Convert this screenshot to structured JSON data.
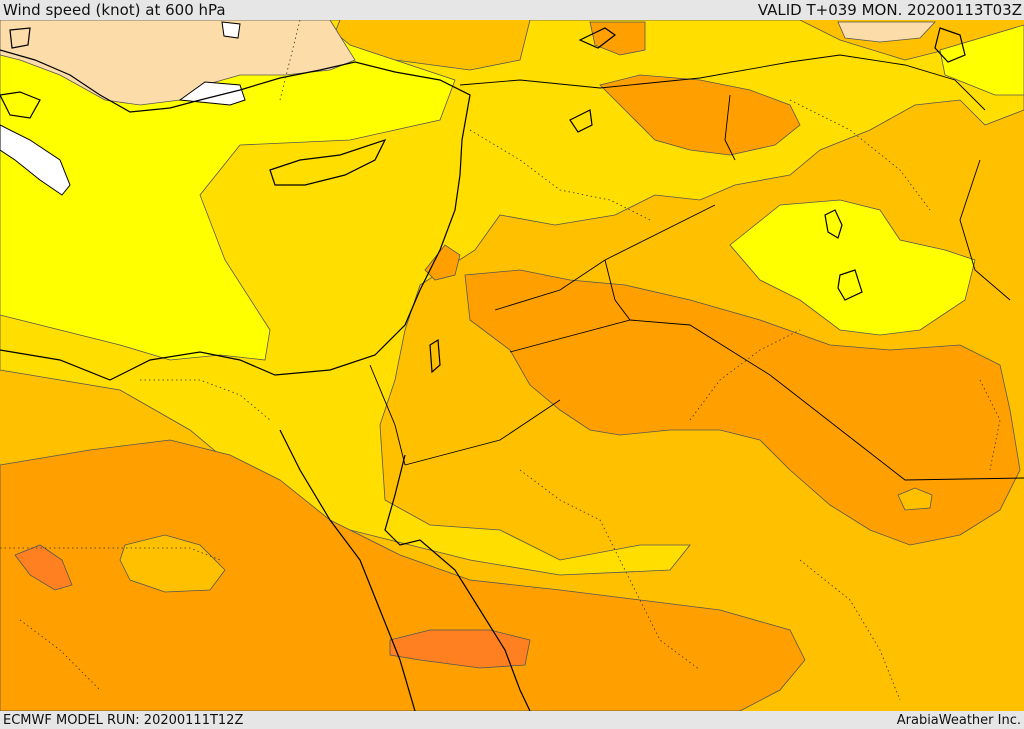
{
  "header": {
    "title": "Wind speed (knot) at 600 hPa",
    "valid": "VALID T+039 MON. 20200113T03Z"
  },
  "footer": {
    "model_run": "ECMWF MODEL RUN: 20200111T12Z",
    "credit": "ArabiaWeather Inc."
  },
  "colors": {
    "band_light_orange": "#fcdca8",
    "band_yellow": "#ffff00",
    "band_gold": "#ffde00",
    "band_amber": "#ffc000",
    "band_orange": "#ffa000",
    "band_dark_orange": "#ff8020",
    "water_white": "#ffffff",
    "coast": "#000000"
  }
}
